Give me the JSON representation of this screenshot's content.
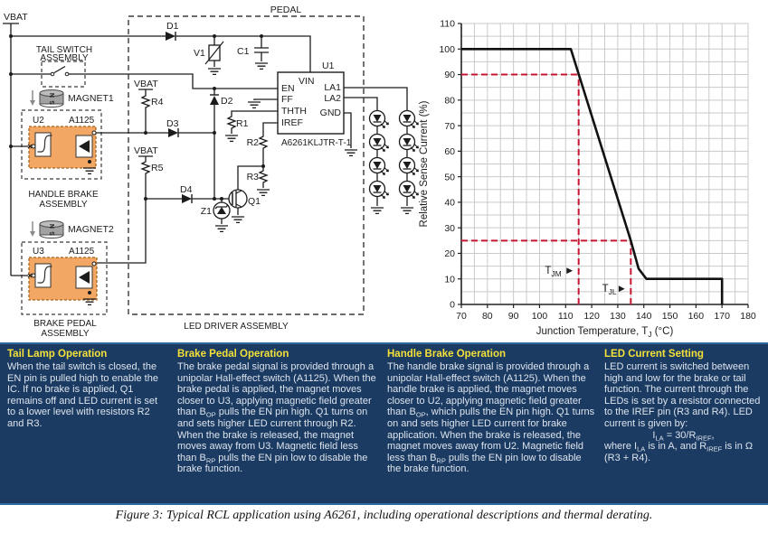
{
  "figure": {
    "caption": "Figure 3: Typical RCL application using A6261, including operational descriptions and thermal derating."
  },
  "colors": {
    "notes_background": "#1b3b63",
    "notes_heading": "#f3e13a",
    "notes_body_text": "#dde4ed",
    "sensor_orange_fill": "#f2a765",
    "sensor_orange_border": "#a8641a",
    "magnet_gray": "#a2a2a2",
    "derating_curve": "#111111",
    "reference_red": "#c81735",
    "grid_gray": "#c9c9c9"
  },
  "schematic": {
    "labels": {
      "vbat_top": "VBAT",
      "vbat_r4": "VBAT",
      "vbat_r5": "VBAT",
      "tail_switch_1": "TAIL SWITCH",
      "tail_switch_2": "ASSEMBLY",
      "magnet1": "MAGNET1",
      "magnet2": "MAGNET2",
      "u2": "U2",
      "a1125_u2": "A1125",
      "u3": "U3",
      "a1125_u3": "A1125",
      "handle_brake_1": "HANDLE BRAKE",
      "handle_brake_2": "ASSEMBLY",
      "brake_pedal_1": "BRAKE PEDAL",
      "brake_pedal_2": "ASSEMBLY",
      "pedal": "PEDAL",
      "led_driver": "LED DRIVER ASSEMBLY",
      "d1": "D1",
      "d2": "D2",
      "d3": "D3",
      "d4": "D4",
      "v1": "V1",
      "c1": "C1",
      "z1": "Z1",
      "q1": "Q1",
      "r1": "R1",
      "r2": "R2",
      "r3": "R3",
      "r4": "R4",
      "r5": "R5",
      "u1": "U1",
      "part_number": "A6261KLJTR-T-1",
      "pin_vin": "VIN",
      "pin_en": "EN",
      "pin_ff": "FF",
      "pin_thth": "THTH",
      "pin_iref": "IREF",
      "pin_la1": "LA1",
      "pin_la2": "LA2",
      "pin_gnd": "GND"
    }
  },
  "chart_data": {
    "type": "line",
    "title": "",
    "xlabel_parts": [
      {
        "t": "Junction Temperature, T"
      },
      {
        "sub": "J"
      },
      {
        "t": " (°C)"
      }
    ],
    "ylabel": "Relative Sense Current (%)",
    "xlim": [
      70,
      180
    ],
    "ylim": [
      0,
      110
    ],
    "x_tick_step": 10,
    "y_tick_step": 10,
    "grid_step": 5,
    "grid": true,
    "legend_position": "none",
    "series": [
      {
        "name": "relative-sense-current-derating",
        "color": "#111111",
        "points": [
          [
            70,
            100
          ],
          [
            112,
            100
          ],
          [
            135,
            25
          ],
          [
            138,
            14
          ],
          [
            141,
            10
          ],
          [
            170,
            10
          ],
          [
            170,
            0
          ]
        ]
      }
    ],
    "reference_lines": [
      {
        "name": "TJM",
        "x": 115,
        "y": 90,
        "label_parts": [
          {
            "t": "T"
          },
          {
            "sub": "JM"
          },
          {
            "t": " ►"
          }
        ],
        "label_at": [
          113.5,
          12
        ]
      },
      {
        "name": "TJL",
        "x": 135,
        "y": 25,
        "label_parts": [
          {
            "t": "T"
          },
          {
            "sub": "JL"
          },
          {
            "t": "►"
          }
        ],
        "label_at": [
          133.5,
          5
        ]
      }
    ],
    "ref_color": "#c81735"
  },
  "notes": {
    "boxes": [
      {
        "title": "Tail Lamp Operation",
        "body": [
          {
            "t": "When the tail switch is closed, the EN pin is pulled high to enable the IC. If no brake is applied, Q1 remains off and LED current is set to a lower level with resistors R2 and R3."
          }
        ]
      },
      {
        "title": "Brake Pedal Operation",
        "body": [
          {
            "t": "The brake pedal signal is provided through a unipolar Hall-effect switch (A1125). When the brake pedal is applied, the magnet moves closer to U3, applying magnetic field greater than B"
          },
          {
            "sub": "OP"
          },
          {
            "t": " pulls the EN pin high. Q1 turns on and sets higher LED current through R2. When the brake is released, the magnet moves away from U3. Magnetic field less than B"
          },
          {
            "sub": "RP"
          },
          {
            "t": " pulls the EN pin low to disable the brake function."
          }
        ]
      },
      {
        "title": "Handle Brake Operation",
        "body": [
          {
            "t": "The handle brake signal is provided through a unipolar Hall-effect switch (A1125). When the handle brake is applied, the magnet moves closer to U2, applying magnetic field greater than B"
          },
          {
            "sub": "OP"
          },
          {
            "t": ", which pulls the EN pin high. Q1 turns on and sets higher LED current for brake application. When the brake is released, the magnet moves away from U2. Magnetic field less than B"
          },
          {
            "sub": "RP"
          },
          {
            "t": " pulls the EN pin low to disable the brake function."
          }
        ]
      },
      {
        "title": "LED Current Setting",
        "body": [
          {
            "t": "LED current is switched between high and low for the brake or tail function. The current through the LEDs is set by a resistor connected to the IREF pin (R3 and R4). LED current is given by:"
          }
        ],
        "formula": [
          {
            "t": "I"
          },
          {
            "sub": "LA"
          },
          {
            "t": " = 30/R"
          },
          {
            "sub": "IREF"
          },
          {
            "t": ","
          }
        ],
        "after": [
          {
            "t": "where I"
          },
          {
            "sub": "LA"
          },
          {
            "t": " is in A, and R"
          },
          {
            "sub": "IREF"
          },
          {
            "t": " is in Ω (R3 + R4)."
          }
        ]
      }
    ]
  }
}
